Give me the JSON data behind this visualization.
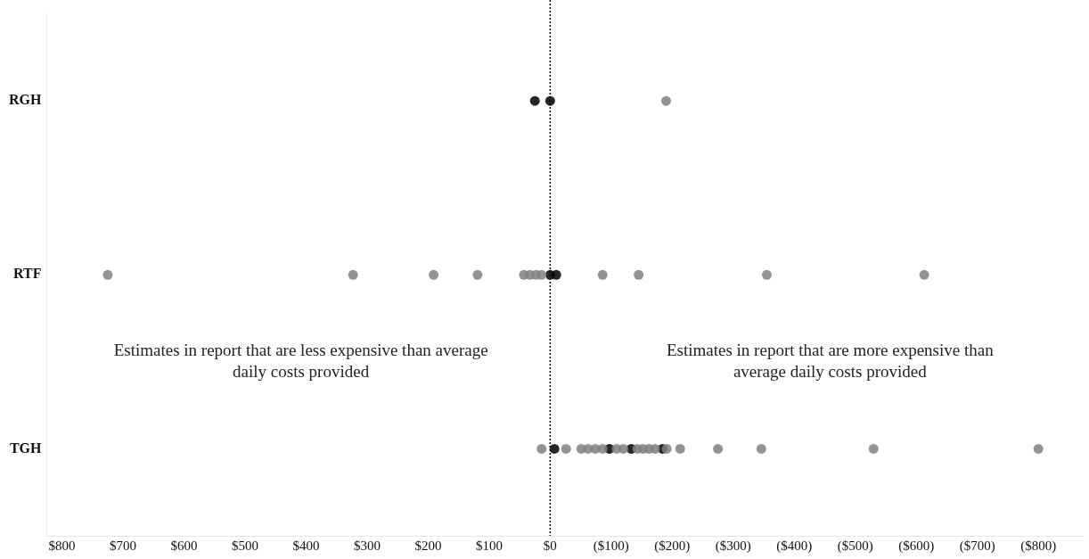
{
  "chart_data": {
    "type": "scatter",
    "orientation": "horizontal",
    "categories": [
      "RGH",
      "RTF",
      "TGH"
    ],
    "series": [
      {
        "color": "#808080",
        "x": [
          "RGH",
          "RTF",
          "RTF",
          "RTF",
          "RTF",
          "RTF",
          "RTF",
          "RTF",
          "RTF",
          "RTF",
          "RTF",
          "RTF",
          "RTF",
          "TGH",
          "TGH",
          "TGH",
          "TGH",
          "TGH",
          "TGH",
          "TGH",
          "TGH",
          "TGH",
          "TGH",
          "TGH",
          "TGH",
          "TGH",
          "TGH",
          "TGH",
          "TGH",
          "TGH",
          "TGH"
        ],
        "values": [
          -190,
          725,
          323,
          191,
          119,
          43,
          33,
          23,
          14,
          -86,
          -145,
          -355,
          -613,
          14,
          -26,
          -51,
          -62,
          -74,
          -86,
          -109,
          -120,
          -143,
          -152,
          -162,
          -172,
          -191,
          -213,
          -275,
          -346,
          -530,
          -800
        ]
      },
      {
        "color": "#000000",
        "x": [
          "RGH",
          "RGH",
          "RTF",
          "RTF",
          "TGH",
          "TGH",
          "TGH",
          "TGH"
        ],
        "values": [
          25,
          0,
          0,
          -10,
          -7,
          -97,
          -133,
          -184
        ]
      }
    ],
    "xlim": [
      825,
      -875
    ],
    "xticks": [
      {
        "value": 800,
        "label": "$800"
      },
      {
        "value": 700,
        "label": "$700"
      },
      {
        "value": 600,
        "label": "$600"
      },
      {
        "value": 500,
        "label": "$500"
      },
      {
        "value": 400,
        "label": "$400"
      },
      {
        "value": 300,
        "label": "$300"
      },
      {
        "value": 200,
        "label": "$200"
      },
      {
        "value": 100,
        "label": "$100"
      },
      {
        "value": 0,
        "label": "$0"
      },
      {
        "value": -100,
        "label": "($100)"
      },
      {
        "value": -200,
        "label": "($200)"
      },
      {
        "value": -300,
        "label": "($300)"
      },
      {
        "value": -400,
        "label": "($400)"
      },
      {
        "value": -500,
        "label": "($500)"
      },
      {
        "value": -600,
        "label": "($600)"
      },
      {
        "value": -700,
        "label": "($700)"
      },
      {
        "value": -800,
        "label": "($800)"
      }
    ],
    "ref_lines": [
      {
        "axis": "x",
        "value": 0,
        "color": "#000000",
        "line_style": "dotted"
      }
    ],
    "annotations": [
      "Estimates in report that are less expensive than average daily costs provided",
      "Estimates in report that are more expensive than average daily costs provided"
    ],
    "grid": false,
    "legend": false,
    "marker": "circle"
  }
}
